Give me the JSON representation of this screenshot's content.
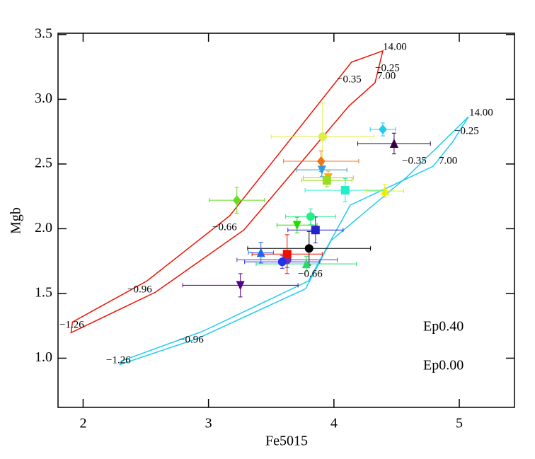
{
  "chart_data": {
    "type": "scatter",
    "xlabel": "Fe5015",
    "ylabel": "Mgb",
    "xlim": [
      1.8,
      5.44
    ],
    "ylim": [
      0.62,
      3.51
    ],
    "xticks": [
      2,
      3,
      4,
      5
    ],
    "yticks": [
      {
        "value": 1,
        "label": "1.0"
      },
      {
        "value": 1.5,
        "label": "1.5"
      },
      {
        "value": 2,
        "label": "2.0"
      },
      {
        "value": 2.5,
        "label": "2.5"
      },
      {
        "value": 3,
        "label": "3.0"
      },
      {
        "value": 3.5,
        "label": "3.5"
      }
    ],
    "models": [
      {
        "name": "Ep0.40",
        "color": "#ee1100",
        "x": [
          1.915,
          2.508,
          3.169,
          4.141,
          4.39,
          4.328,
          4.119,
          3.282,
          2.576,
          1.904
        ],
        "y": [
          1.279,
          1.596,
          2.1,
          3.287,
          3.374,
          3.128,
          2.947,
          1.99,
          1.509,
          1.197
        ],
        "labels": [
          "14.00",
          "−0.25",
          "−0.35",
          "7.00",
          "−0.66",
          "−0.96",
          "−1.26"
        ]
      },
      {
        "name": "Ep0.00",
        "color": "#22ccee",
        "x": [
          2.294,
          2.915,
          3.774,
          3.977,
          4.582,
          5.073,
          4.949,
          4.791,
          4.13,
          3.797,
          2.955,
          2.305
        ],
        "y": [
          0.951,
          1.153,
          1.536,
          1.908,
          2.4,
          2.865,
          2.674,
          2.482,
          2.182,
          1.596,
          1.208,
          0.978
        ],
        "labels": [
          "14.00",
          "−0.25",
          "−0.35",
          "7.00",
          "−0.66",
          "−0.96",
          "−1.26"
        ]
      }
    ],
    "points": [
      {
        "marker": "diamond",
        "color": "#66dd22",
        "x": 3.226,
        "y": 2.22,
        "xerr": 0.22,
        "yerr": 0.1
      },
      {
        "marker": "circle",
        "color": "#ddee44",
        "x": 3.91,
        "y": 2.712,
        "xerr": 0.41,
        "yerr": 0.26
      },
      {
        "marker": "diamond",
        "color": "#22ccee",
        "x": 4.39,
        "y": 2.767,
        "xerr": 0.1,
        "yerr": 0.05
      },
      {
        "marker": "triangle",
        "color": "#330044",
        "x": 4.48,
        "y": 2.658,
        "xerr": 0.29,
        "yerr": 0.08
      },
      {
        "marker": "diamond",
        "color": "#ee7711",
        "x": 3.898,
        "y": 2.521,
        "xerr": 0.3,
        "yerr": 0.08
      },
      {
        "marker": "tridown",
        "color": "#3399dd",
        "x": 3.904,
        "y": 2.455,
        "xerr": 0.2,
        "yerr": 0.05
      },
      {
        "marker": "tridown",
        "color": "#ffaa00",
        "x": 3.955,
        "y": 2.395,
        "xerr": 0.2,
        "yerr": 0.05
      },
      {
        "marker": "square",
        "color": "#99dd22",
        "x": 3.944,
        "y": 2.373,
        "xerr": 0.2,
        "yerr": 0.05
      },
      {
        "marker": "square",
        "color": "#22eecc",
        "x": 4.09,
        "y": 2.297,
        "xerr": 0.32,
        "yerr": 0.09
      },
      {
        "marker": "triangle",
        "color": "#eeee00",
        "x": 4.407,
        "y": 2.291,
        "xerr": 0.15,
        "yerr": 0.05
      },
      {
        "marker": "circle",
        "color": "#22ee88",
        "x": 3.814,
        "y": 2.094,
        "xerr": 0.2,
        "yerr": 0.06
      },
      {
        "marker": "tridown",
        "color": "#22dd00",
        "x": 3.706,
        "y": 2.028,
        "xerr": 0.16,
        "yerr": 0.06
      },
      {
        "marker": "square",
        "color": "#2222cc",
        "x": 3.853,
        "y": 1.99,
        "xerr": 0.22,
        "yerr": 0.1
      },
      {
        "marker": "circle",
        "color": "#000000",
        "x": 3.802,
        "y": 1.848,
        "xerr": 0.49,
        "yerr": 0.13
      },
      {
        "marker": "triangle",
        "color": "#2266ee",
        "x": 3.418,
        "y": 1.815,
        "xerr": 0.1,
        "yerr": 0.08
      },
      {
        "marker": "circle",
        "color": "#6633bb",
        "x": 3.627,
        "y": 1.76,
        "xerr": 0.4,
        "yerr": 0.06
      },
      {
        "marker": "square",
        "color": "#ee1100",
        "x": 3.627,
        "y": 1.804,
        "xerr": 0.28,
        "yerr": 0.15
      },
      {
        "marker": "circle",
        "color": "#2233ee",
        "x": 3.588,
        "y": 1.744,
        "xerr": 0.3,
        "yerr": 0.05
      },
      {
        "marker": "triangle",
        "color": "#22dd66",
        "x": 3.78,
        "y": 1.728,
        "xerr": 0.4,
        "yerr": 0.06
      },
      {
        "marker": "tridown",
        "color": "#550088",
        "x": 3.254,
        "y": 1.563,
        "xerr": 0.46,
        "yerr": 0.09
      }
    ]
  }
}
